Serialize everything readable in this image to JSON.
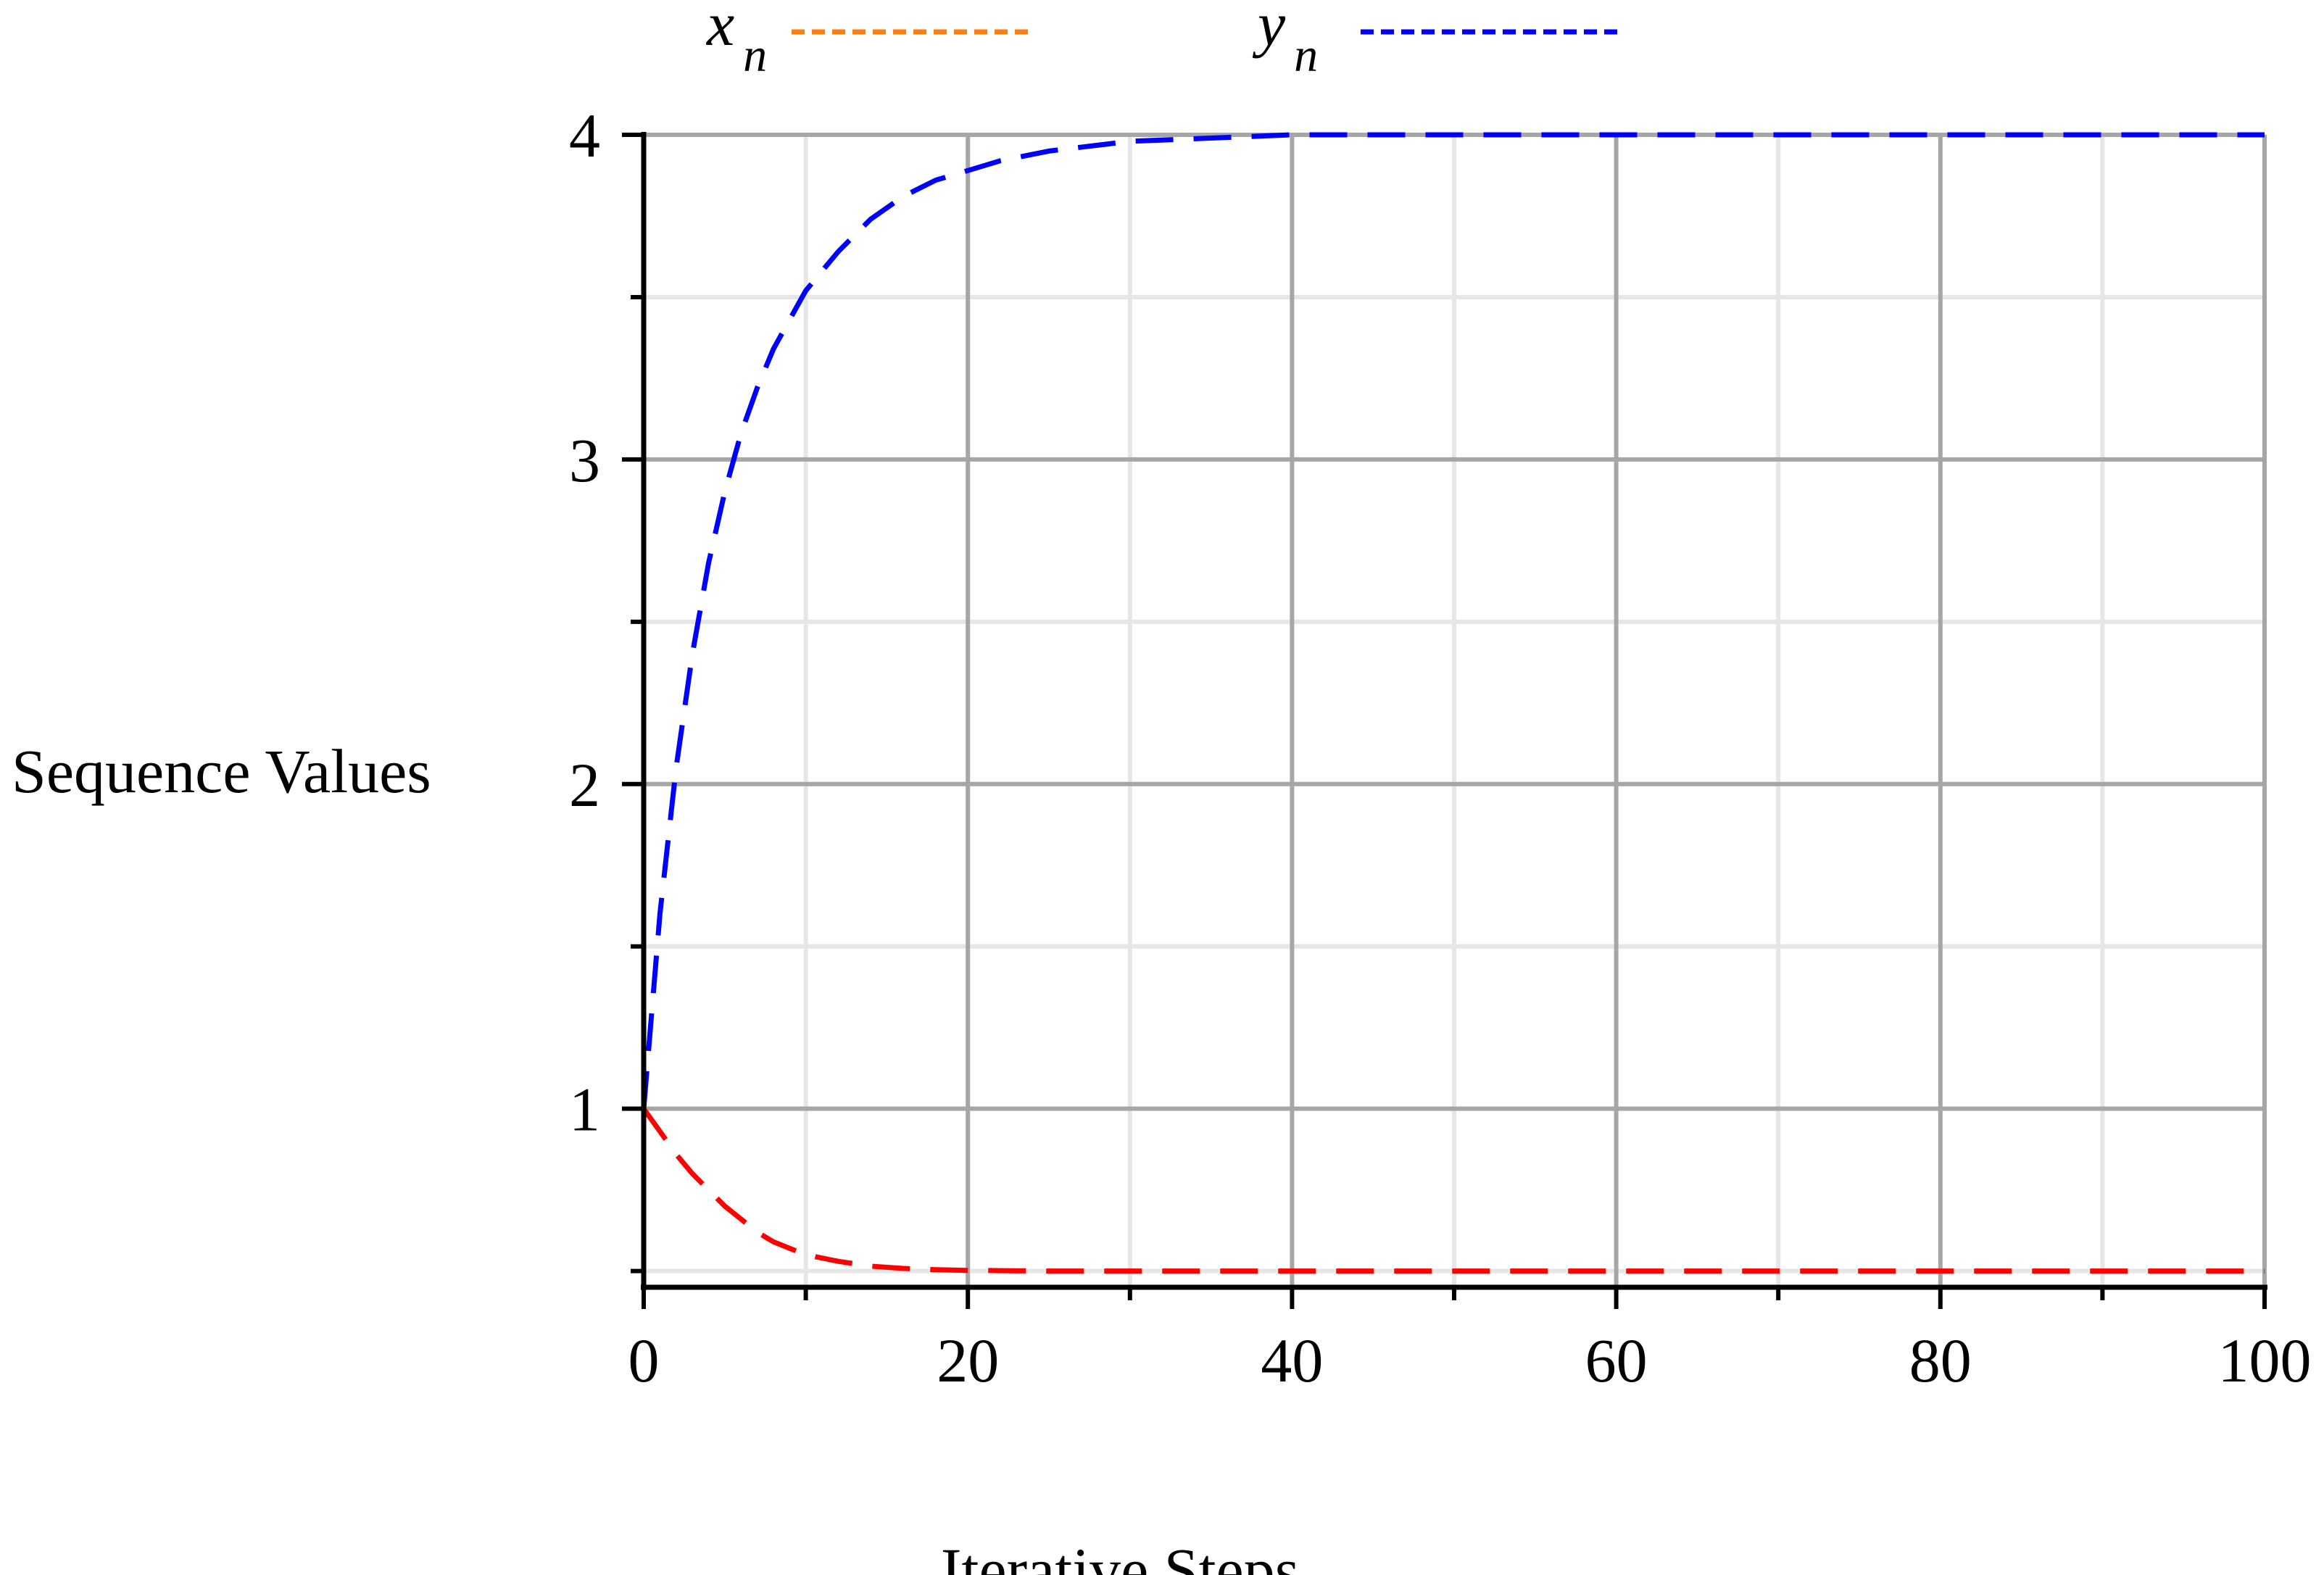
{
  "chart_data": {
    "type": "line",
    "xlabel": "Iterative Steps",
    "ylabel": "Sequence Values",
    "xlim": [
      0,
      100
    ],
    "ylim": [
      0.45,
      4
    ],
    "xticks": [
      0,
      20,
      40,
      60,
      80,
      100
    ],
    "xtick_labels": [
      "0",
      "20",
      "40",
      "60",
      "80",
      "100"
    ],
    "xticks_minor": [
      10,
      30,
      50,
      70,
      90
    ],
    "yticks": [
      1,
      2,
      3,
      4
    ],
    "ytick_labels": [
      "1",
      "2",
      "3",
      "4"
    ],
    "yticks_minor": [
      0.5,
      1.5,
      2.5,
      3.5
    ],
    "grid": true,
    "legend_position": "top",
    "series": [
      {
        "name": "x_n",
        "legend_base": "x",
        "legend_sub": "n",
        "legend_color": "#ff7f0e",
        "color": "#ff0000",
        "x": [
          0,
          1,
          2,
          3,
          4,
          5,
          6,
          7,
          8,
          9,
          10,
          12,
          14,
          16,
          18,
          20,
          25,
          30,
          40,
          50,
          60,
          70,
          80,
          90,
          100
        ],
        "y": [
          1.0,
          0.93,
          0.86,
          0.8,
          0.75,
          0.7,
          0.66,
          0.62,
          0.59,
          0.57,
          0.55,
          0.53,
          0.515,
          0.508,
          0.504,
          0.502,
          0.5,
          0.5,
          0.5,
          0.5,
          0.5,
          0.5,
          0.5,
          0.5,
          0.5
        ]
      },
      {
        "name": "y_n",
        "legend_base": "y",
        "legend_sub": "n",
        "legend_color": "#0000ff",
        "color": "#0000ff",
        "x": [
          0,
          1,
          2,
          3,
          4,
          5,
          6,
          7,
          8,
          9,
          10,
          12,
          14,
          16,
          18,
          20,
          22,
          25,
          30,
          35,
          40,
          50,
          60,
          70,
          80,
          90,
          100
        ],
        "y": [
          1.0,
          1.6,
          2.05,
          2.4,
          2.68,
          2.9,
          3.08,
          3.22,
          3.34,
          3.43,
          3.52,
          3.64,
          3.74,
          3.81,
          3.86,
          3.89,
          3.92,
          3.95,
          3.98,
          3.99,
          4.0,
          4.0,
          4.0,
          4.0,
          4.0,
          4.0,
          4.0
        ]
      }
    ]
  }
}
